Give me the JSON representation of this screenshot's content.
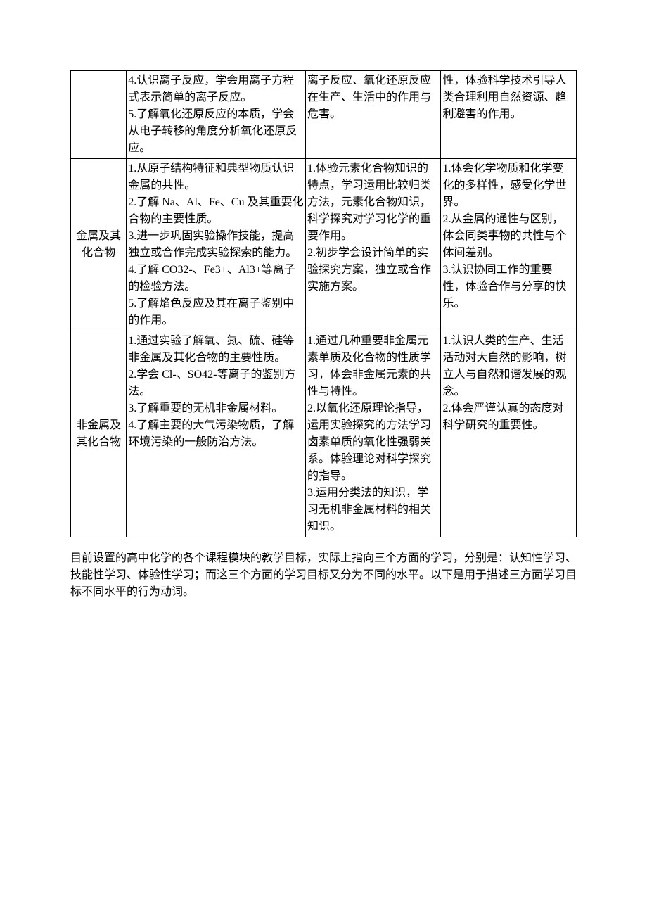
{
  "rows": [
    {
      "category": "",
      "colA": [
        "4.认识离子反应，学会用离子方程式表示简单的离子反应。",
        "",
        "5.了解氧化还原反应的本质，学会从电子转移的角度分析氧化还原反应。"
      ],
      "colB": [
        "离子反应、氧化还原反应在生产、生活中的作用与危害。"
      ],
      "colC": [
        "性，体验科学技术引导人类合理利用自然资源、趋利避害的作用。"
      ]
    },
    {
      "category": "金属及其化合物",
      "colA": [
        "1.从原子结构特征和典型物质认识金属的共性。",
        "",
        "2.了解 Na、Al、Fe、Cu 及其重要化合物的主要性质。",
        "",
        "3.进一步巩固实验操作技能，提高独立或合作完成实验探索的能力。",
        "",
        "4.了解 CO32-、Fe3+、Al3+等离子的检验方法。",
        "",
        "5.了解焰色反应及其在离子鉴别中的作用。"
      ],
      "colB": [
        "1.体验元素化合物知识的特点，学习运用比较归类方法，元素化合物知识，科学探究对学习化学的重要作用。",
        "",
        "2.初步学会设计简单的实验探究方案，独立或合作实施方案。"
      ],
      "colC": [
        "1.体会化学物质和化学变化的多样性，感受化学世界。",
        "",
        "2.从金属的通性与区别，体会同类事物的共性与个体间差别。",
        "",
        "3.认识协同工作的重要性，体验合作与分享的快乐。"
      ]
    },
    {
      "category": "非金属及其化合物",
      "colA": [
        "1.通过实验了解氧、氮、硫、硅等非金属及其化合物的主要性质。",
        "",
        "2.学会 Cl-、SO42-等离子的鉴别方法。",
        "",
        "3.了解重要的无机非金属材料。",
        "",
        "4.了解主要的大气污染物质，了解环境污染的一般防治方法。"
      ],
      "colB": [
        "1.通过几种重要非金属元素单质及化合物的性质学习，体会非金属元素的共性与特性。",
        "",
        "2.以氧化还原理论指导，运用实验探究的方法学习卤素单质的氧化性强弱关系。体验理论对科学探究的指导。",
        "",
        "3.运用分类法的知识，学习无机非金属材料的相关知识。"
      ],
      "colC": [
        "1.认识人类的生产、生活活动对大自然的影响，树立人与自然和谐发展的观念。",
        "",
        "2.体会严谨认真的态度对科学研究的重要性。"
      ]
    }
  ],
  "bodyText": "目前设置的高中化学的各个课程模块的教学目标，实际上指向三个方面的学习，分别是：认知性学习、技能性学习、体验性学习；而这三个方面的学习目标又分为不同的水平。以下是用于描述三方面学习目标不同水平的行为动词。"
}
